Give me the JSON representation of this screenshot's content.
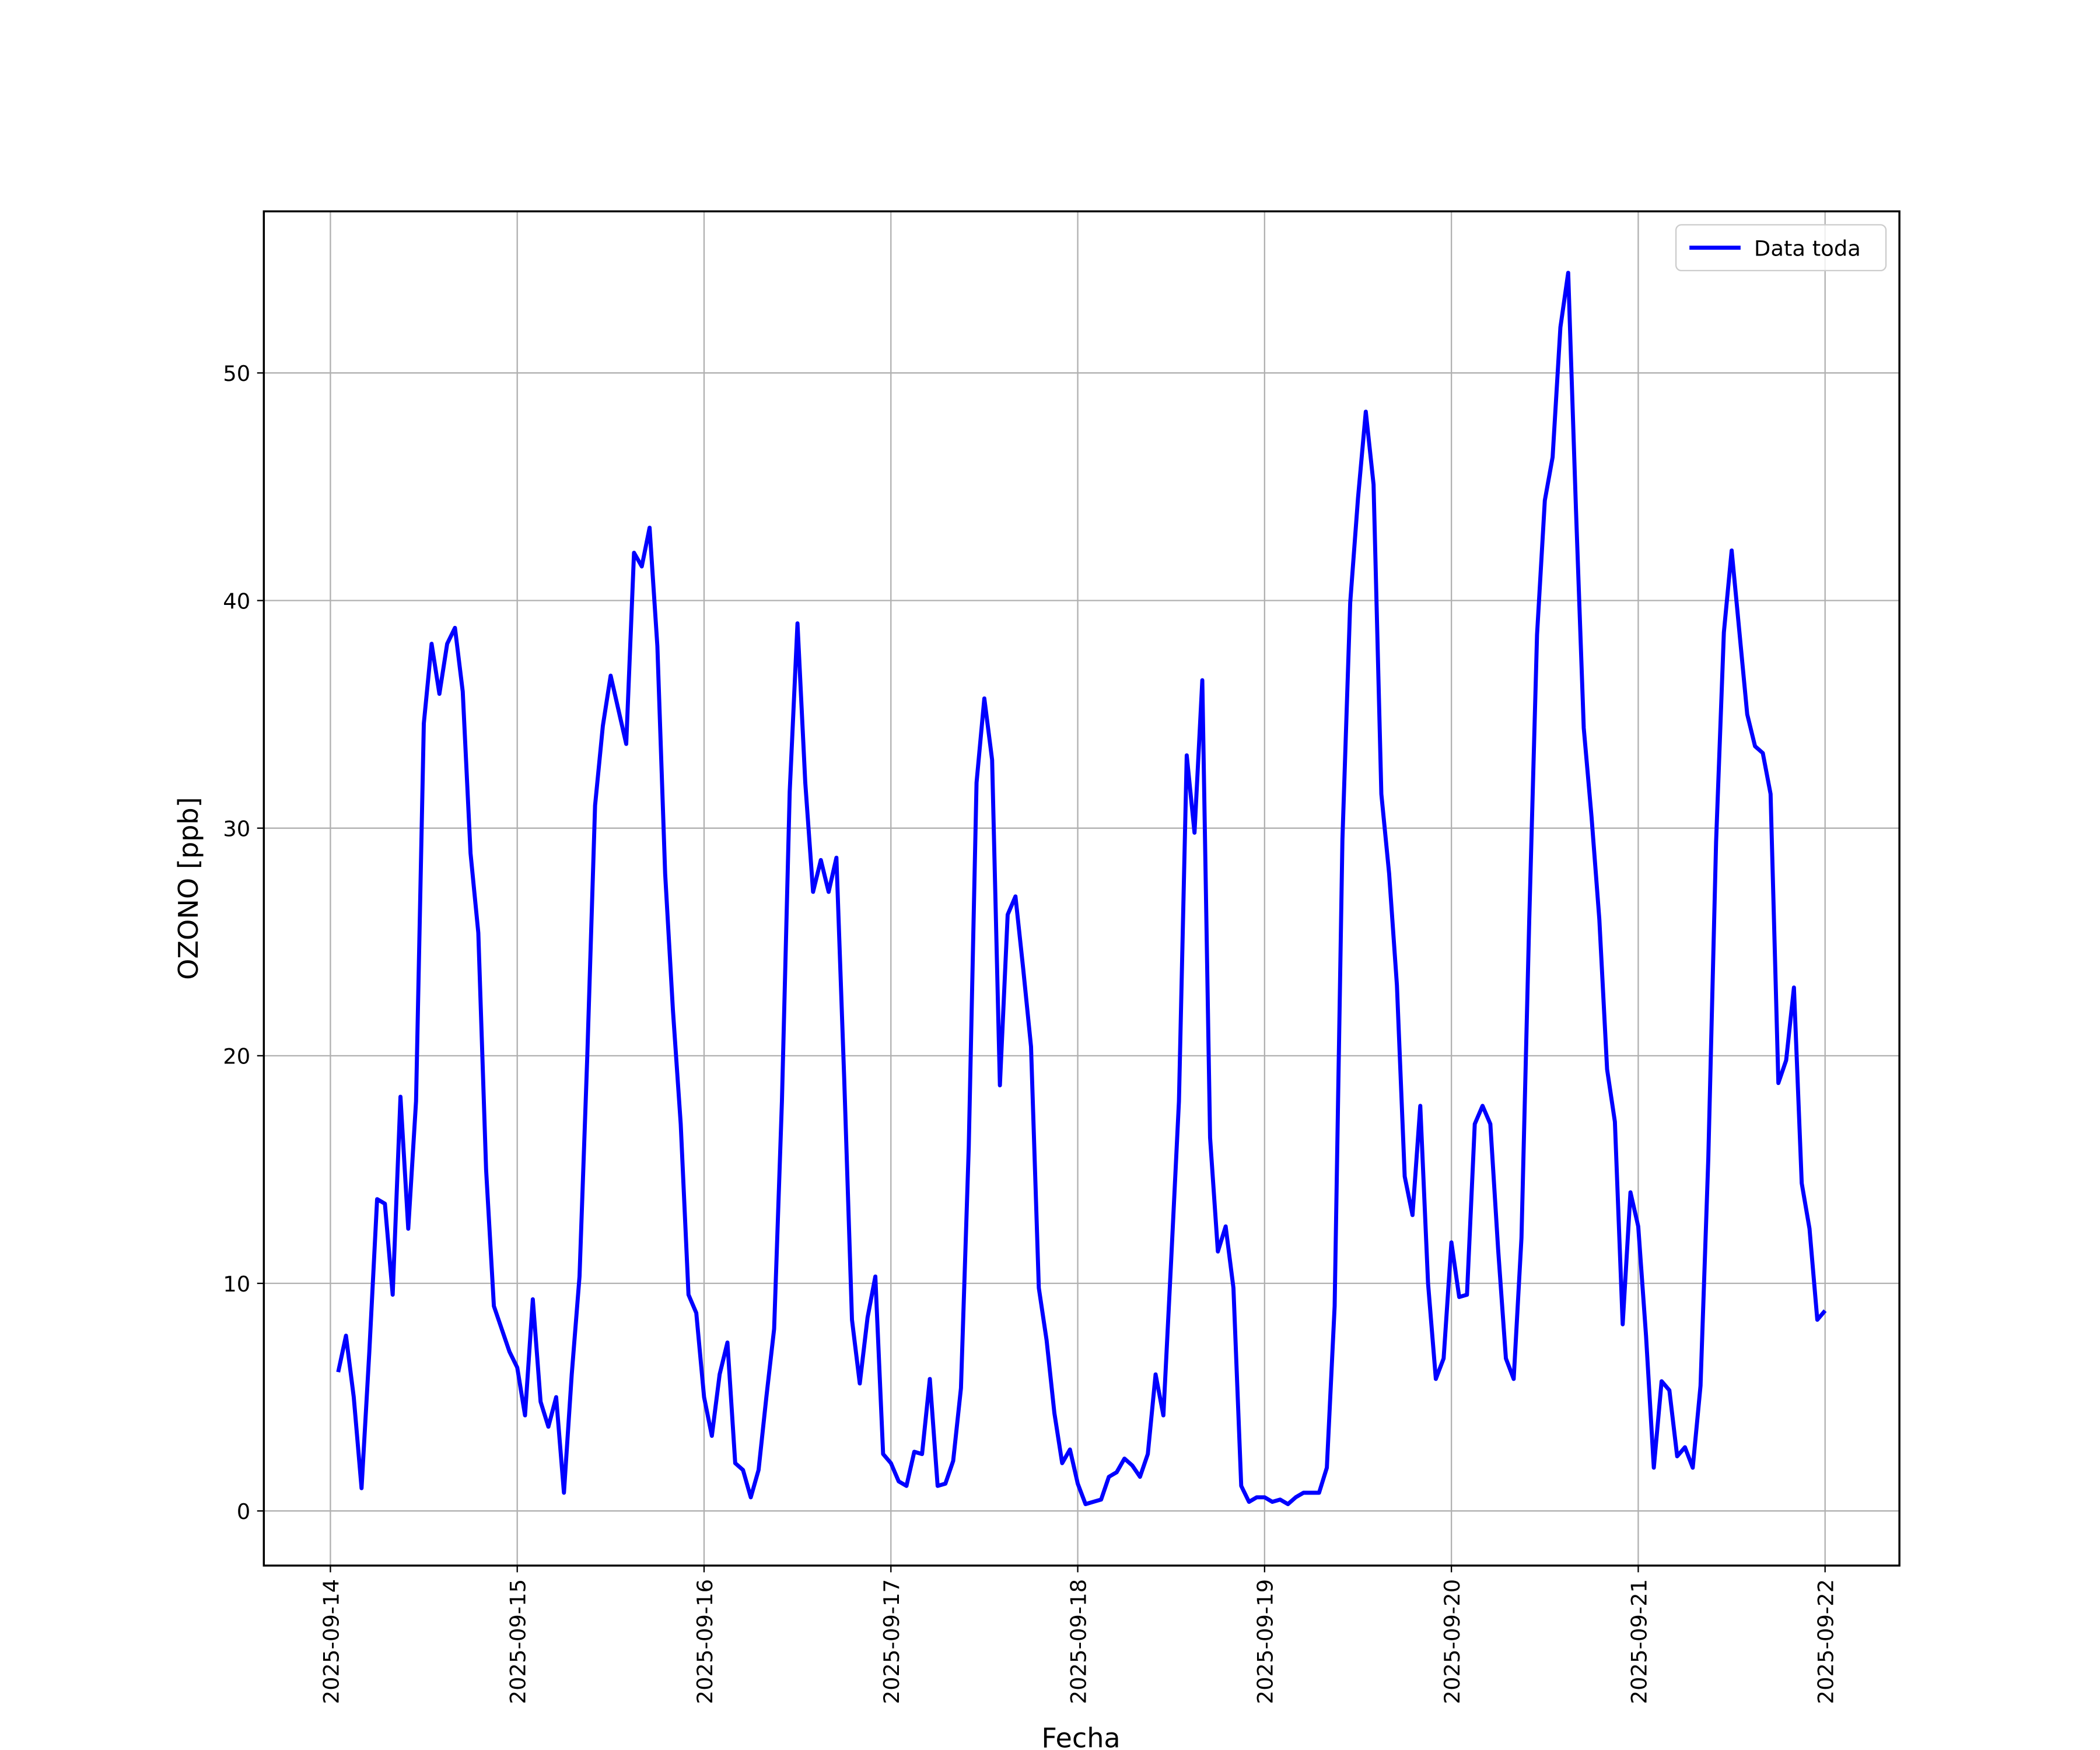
{
  "chart_data": {
    "type": "line",
    "xlabel": "Fecha",
    "ylabel": "OZONO [ppb]",
    "x": [
      "2025-09-14 01:00",
      "2025-09-14 02:00",
      "2025-09-14 03:00",
      "2025-09-14 04:00",
      "2025-09-14 05:00",
      "2025-09-14 06:00",
      "2025-09-14 07:00",
      "2025-09-14 08:00",
      "2025-09-14 09:00",
      "2025-09-14 10:00",
      "2025-09-14 11:00",
      "2025-09-14 12:00",
      "2025-09-14 13:00",
      "2025-09-14 14:00",
      "2025-09-14 15:00",
      "2025-09-14 16:00",
      "2025-09-14 17:00",
      "2025-09-14 18:00",
      "2025-09-14 19:00",
      "2025-09-14 20:00",
      "2025-09-14 21:00",
      "2025-09-14 22:00",
      "2025-09-14 23:00",
      "2025-09-15 00:00",
      "2025-09-15 01:00",
      "2025-09-15 02:00",
      "2025-09-15 03:00",
      "2025-09-15 04:00",
      "2025-09-15 05:00",
      "2025-09-15 06:00",
      "2025-09-15 07:00",
      "2025-09-15 08:00",
      "2025-09-15 09:00",
      "2025-09-15 10:00",
      "2025-09-15 11:00",
      "2025-09-15 12:00",
      "2025-09-15 13:00",
      "2025-09-15 14:00",
      "2025-09-15 15:00",
      "2025-09-15 16:00",
      "2025-09-15 17:00",
      "2025-09-15 18:00",
      "2025-09-15 19:00",
      "2025-09-15 20:00",
      "2025-09-15 21:00",
      "2025-09-15 22:00",
      "2025-09-15 23:00",
      "2025-09-16 00:00",
      "2025-09-16 01:00",
      "2025-09-16 02:00",
      "2025-09-16 03:00",
      "2025-09-16 04:00",
      "2025-09-16 05:00",
      "2025-09-16 06:00",
      "2025-09-16 07:00",
      "2025-09-16 08:00",
      "2025-09-16 09:00",
      "2025-09-16 10:00",
      "2025-09-16 11:00",
      "2025-09-16 12:00",
      "2025-09-16 13:00",
      "2025-09-16 14:00",
      "2025-09-16 15:00",
      "2025-09-16 16:00",
      "2025-09-16 17:00",
      "2025-09-16 18:00",
      "2025-09-16 19:00",
      "2025-09-16 20:00",
      "2025-09-16 21:00",
      "2025-09-16 22:00",
      "2025-09-16 23:00",
      "2025-09-17 00:00",
      "2025-09-17 01:00",
      "2025-09-17 02:00",
      "2025-09-17 03:00",
      "2025-09-17 04:00",
      "2025-09-17 05:00",
      "2025-09-17 06:00",
      "2025-09-17 07:00",
      "2025-09-17 08:00",
      "2025-09-17 09:00",
      "2025-09-17 10:00",
      "2025-09-17 11:00",
      "2025-09-17 12:00",
      "2025-09-17 13:00",
      "2025-09-17 14:00",
      "2025-09-17 15:00",
      "2025-09-17 16:00",
      "2025-09-17 17:00",
      "2025-09-17 18:00",
      "2025-09-17 19:00",
      "2025-09-17 20:00",
      "2025-09-17 21:00",
      "2025-09-17 22:00",
      "2025-09-17 23:00",
      "2025-09-18 00:00",
      "2025-09-18 01:00",
      "2025-09-18 02:00",
      "2025-09-18 03:00",
      "2025-09-18 04:00",
      "2025-09-18 05:00",
      "2025-09-18 06:00",
      "2025-09-18 07:00",
      "2025-09-18 08:00",
      "2025-09-18 09:00",
      "2025-09-18 10:00",
      "2025-09-18 11:00",
      "2025-09-18 12:00",
      "2025-09-18 13:00",
      "2025-09-18 14:00",
      "2025-09-18 15:00",
      "2025-09-18 16:00",
      "2025-09-18 17:00",
      "2025-09-18 18:00",
      "2025-09-18 19:00",
      "2025-09-18 20:00",
      "2025-09-18 21:00",
      "2025-09-18 22:00",
      "2025-09-18 23:00",
      "2025-09-19 00:00",
      "2025-09-19 01:00",
      "2025-09-19 02:00",
      "2025-09-19 03:00",
      "2025-09-19 04:00",
      "2025-09-19 05:00",
      "2025-09-19 06:00",
      "2025-09-19 07:00",
      "2025-09-19 08:00",
      "2025-09-19 09:00",
      "2025-09-19 10:00",
      "2025-09-19 11:00",
      "2025-09-19 12:00",
      "2025-09-19 13:00",
      "2025-09-19 14:00",
      "2025-09-19 15:00",
      "2025-09-19 16:00",
      "2025-09-19 17:00",
      "2025-09-19 18:00",
      "2025-09-19 19:00",
      "2025-09-19 20:00",
      "2025-09-19 21:00",
      "2025-09-19 22:00",
      "2025-09-19 23:00",
      "2025-09-20 00:00",
      "2025-09-20 01:00",
      "2025-09-20 02:00",
      "2025-09-20 03:00",
      "2025-09-20 04:00",
      "2025-09-20 05:00",
      "2025-09-20 06:00",
      "2025-09-20 07:00",
      "2025-09-20 08:00",
      "2025-09-20 09:00",
      "2025-09-20 10:00",
      "2025-09-20 11:00",
      "2025-09-20 12:00",
      "2025-09-20 13:00",
      "2025-09-20 14:00",
      "2025-09-20 15:00",
      "2025-09-20 16:00",
      "2025-09-20 17:00",
      "2025-09-20 18:00",
      "2025-09-20 19:00",
      "2025-09-20 20:00",
      "2025-09-20 21:00",
      "2025-09-20 22:00",
      "2025-09-20 23:00",
      "2025-09-21 00:00",
      "2025-09-21 01:00",
      "2025-09-21 02:00",
      "2025-09-21 03:00",
      "2025-09-21 04:00",
      "2025-09-21 05:00",
      "2025-09-21 06:00",
      "2025-09-21 07:00",
      "2025-09-21 08:00",
      "2025-09-21 09:00",
      "2025-09-21 10:00",
      "2025-09-21 11:00",
      "2025-09-21 12:00",
      "2025-09-21 13:00",
      "2025-09-21 14:00",
      "2025-09-21 15:00",
      "2025-09-21 16:00",
      "2025-09-21 17:00",
      "2025-09-21 18:00",
      "2025-09-21 19:00",
      "2025-09-21 20:00",
      "2025-09-21 21:00",
      "2025-09-21 22:00",
      "2025-09-21 23:00",
      "2025-09-22 00:00"
    ],
    "series": [
      {
        "name": "Data toda",
        "color": "#0000ff",
        "values": [
          6.1,
          7.7,
          5.0,
          1.0,
          7.0,
          13.7,
          13.5,
          9.5,
          18.2,
          12.4,
          18.0,
          34.6,
          38.1,
          35.9,
          38.1,
          38.8,
          36.0,
          28.9,
          25.4,
          15.0,
          9.0,
          8.0,
          7.0,
          6.3,
          4.2,
          9.3,
          4.8,
          3.7,
          5.0,
          0.8,
          6.0,
          10.3,
          20.0,
          31.0,
          34.5,
          36.7,
          35.2,
          33.7,
          42.1,
          41.5,
          43.2,
          38.0,
          28.0,
          22.0,
          17.0,
          9.5,
          8.7,
          5.0,
          3.3,
          6.0,
          7.4,
          2.1,
          1.8,
          0.6,
          1.8,
          5.0,
          8.0,
          18.0,
          31.6,
          39.0,
          32.0,
          27.2,
          28.6,
          27.2,
          28.7,
          19.0,
          8.4,
          5.6,
          8.5,
          10.3,
          2.5,
          2.1,
          1.3,
          1.1,
          2.6,
          2.5,
          5.8,
          1.1,
          1.2,
          2.2,
          5.4,
          16.0,
          32.0,
          35.7,
          33.0,
          18.7,
          26.2,
          27.0,
          23.8,
          20.4,
          9.8,
          7.5,
          4.3,
          2.1,
          2.7,
          1.2,
          0.3,
          0.4,
          0.5,
          1.5,
          1.7,
          2.3,
          2.0,
          1.5,
          2.5,
          6.0,
          4.2,
          11.0,
          18.0,
          33.2,
          29.8,
          36.5,
          16.4,
          11.4,
          12.5,
          9.8,
          1.1,
          0.4,
          0.6,
          0.6,
          0.4,
          0.5,
          0.3,
          0.6,
          0.8,
          0.8,
          0.8,
          1.9,
          9.0,
          29.5,
          39.9,
          44.5,
          48.3,
          45.1,
          31.5,
          28.0,
          23.1,
          14.7,
          13.0,
          17.8,
          10.0,
          5.8,
          6.7,
          11.8,
          9.4,
          9.5,
          17.0,
          17.8,
          17.0,
          11.5,
          6.7,
          5.8,
          12.0,
          26.0,
          38.5,
          44.4,
          46.3,
          52.0,
          54.4,
          44.0,
          34.4,
          30.5,
          26.0,
          19.4,
          17.1,
          8.2,
          14.0,
          12.5,
          7.7,
          1.9,
          5.7,
          5.3,
          2.4,
          2.8,
          1.9,
          5.5,
          15.5,
          29.4,
          38.6,
          42.2,
          38.6,
          35.0,
          33.6,
          33.3,
          31.5,
          18.8,
          19.8,
          23.0,
          14.4,
          12.4,
          8.4,
          8.8
        ]
      }
    ],
    "xlim": [
      "2025-09-13 15:27",
      "2025-09-22 09:33"
    ],
    "xticks": [
      "2025-09-14",
      "2025-09-15",
      "2025-09-16",
      "2025-09-17",
      "2025-09-18",
      "2025-09-19",
      "2025-09-20",
      "2025-09-21",
      "2025-09-22"
    ],
    "ylim": [
      -2.4,
      57.1
    ],
    "yticks": [
      0,
      10,
      20,
      30,
      40,
      50
    ],
    "grid": true,
    "legend": "upper right"
  }
}
